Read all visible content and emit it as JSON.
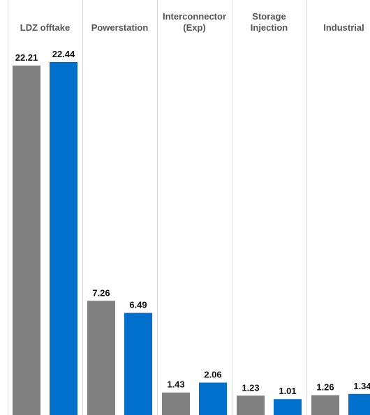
{
  "chart_data": {
    "type": "bar",
    "categories": [
      "LDZ offtake",
      "Powerstation",
      "Interconnector\n(Exp)",
      "Storage\nInjection",
      "Industrial"
    ],
    "series": [
      {
        "values": [
          22.21,
          7.26,
          1.43,
          1.23,
          1.26
        ],
        "color": "#808080"
      },
      {
        "values": [
          22.44,
          6.49,
          2.06,
          1.01,
          1.34
        ],
        "color": "#0070cc"
      }
    ],
    "ylim": [
      0,
      23.5
    ],
    "grid": false,
    "legend": "none"
  },
  "colors": {
    "divider": "#d9d9d9",
    "category_text": "#555555",
    "value_text": "#111111"
  }
}
